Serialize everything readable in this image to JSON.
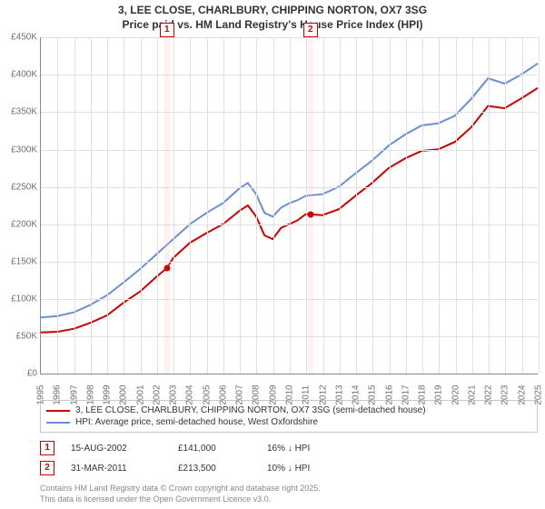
{
  "title_line1": "3, LEE CLOSE, CHARLBURY, CHIPPING NORTON, OX7 3SG",
  "title_line2": "Price paid vs. HM Land Registry's House Price Index (HPI)",
  "chart": {
    "type": "line",
    "background_color": "#ffffff",
    "grid_color": "#e0e0e0",
    "axis_color": "#888888",
    "label_color": "#707070",
    "label_fontsize": 10,
    "ylim": [
      0,
      450000
    ],
    "ytick_step": 50000,
    "yticks": [
      "£0",
      "£50K",
      "£100K",
      "£150K",
      "£200K",
      "£250K",
      "£300K",
      "£350K",
      "£400K",
      "£450K"
    ],
    "xlim": [
      1995,
      2025
    ],
    "xticks": [
      "1995",
      "1996",
      "1997",
      "1998",
      "1999",
      "2000",
      "2001",
      "2002",
      "2003",
      "2004",
      "2005",
      "2006",
      "2007",
      "2008",
      "2009",
      "2010",
      "2011",
      "2012",
      "2013",
      "2014",
      "2015",
      "2016",
      "2017",
      "2018",
      "2019",
      "2020",
      "2021",
      "2022",
      "2023",
      "2024",
      "2025"
    ],
    "series": [
      {
        "name": "price_paid",
        "label": "3, LEE CLOSE, CHARLBURY, CHIPPING NORTON, OX7 3SG (semi-detached house)",
        "color": "#d00000",
        "line_width": 2,
        "points": [
          [
            1995,
            55000
          ],
          [
            1996,
            56000
          ],
          [
            1997,
            60000
          ],
          [
            1998,
            68000
          ],
          [
            1999,
            78000
          ],
          [
            2000,
            95000
          ],
          [
            2001,
            110000
          ],
          [
            2002,
            130000
          ],
          [
            2002.6,
            141000
          ],
          [
            2003,
            155000
          ],
          [
            2004,
            175000
          ],
          [
            2005,
            188000
          ],
          [
            2006,
            200000
          ],
          [
            2007,
            218000
          ],
          [
            2007.5,
            225000
          ],
          [
            2008,
            210000
          ],
          [
            2008.5,
            185000
          ],
          [
            2009,
            180000
          ],
          [
            2009.5,
            195000
          ],
          [
            2010,
            200000
          ],
          [
            2010.5,
            205000
          ],
          [
            2011,
            213500
          ],
          [
            2012,
            212000
          ],
          [
            2013,
            220000
          ],
          [
            2014,
            238000
          ],
          [
            2015,
            255000
          ],
          [
            2016,
            275000
          ],
          [
            2017,
            288000
          ],
          [
            2018,
            298000
          ],
          [
            2019,
            300000
          ],
          [
            2020,
            310000
          ],
          [
            2021,
            330000
          ],
          [
            2022,
            358000
          ],
          [
            2023,
            355000
          ],
          [
            2024,
            368000
          ],
          [
            2025,
            382000
          ]
        ]
      },
      {
        "name": "hpi",
        "label": "HPI: Average price, semi-detached house, West Oxfordshire",
        "color": "#6a8fd8",
        "line_width": 2,
        "points": [
          [
            1995,
            75000
          ],
          [
            1996,
            77000
          ],
          [
            1997,
            82000
          ],
          [
            1998,
            92000
          ],
          [
            1999,
            105000
          ],
          [
            2000,
            122000
          ],
          [
            2001,
            140000
          ],
          [
            2002,
            160000
          ],
          [
            2003,
            180000
          ],
          [
            2004,
            200000
          ],
          [
            2005,
            215000
          ],
          [
            2006,
            228000
          ],
          [
            2007,
            248000
          ],
          [
            2007.5,
            255000
          ],
          [
            2008,
            240000
          ],
          [
            2008.5,
            215000
          ],
          [
            2009,
            210000
          ],
          [
            2009.5,
            222000
          ],
          [
            2010,
            228000
          ],
          [
            2010.5,
            232000
          ],
          [
            2011,
            238000
          ],
          [
            2012,
            240000
          ],
          [
            2013,
            250000
          ],
          [
            2014,
            268000
          ],
          [
            2015,
            285000
          ],
          [
            2016,
            305000
          ],
          [
            2017,
            320000
          ],
          [
            2018,
            332000
          ],
          [
            2019,
            335000
          ],
          [
            2020,
            345000
          ],
          [
            2021,
            368000
          ],
          [
            2022,
            395000
          ],
          [
            2023,
            388000
          ],
          [
            2024,
            400000
          ],
          [
            2025,
            415000
          ]
        ]
      }
    ],
    "markers": [
      {
        "num": "1",
        "x": 2002.6,
        "y": 141000
      },
      {
        "num": "2",
        "x": 2011.25,
        "y": 213500
      }
    ],
    "marker_band_color": "rgba(255,200,200,0.25)",
    "marker_border_color": "#d00000"
  },
  "legend": {
    "items": [
      {
        "color": "#d00000",
        "label": "3, LEE CLOSE, CHARLBURY, CHIPPING NORTON, OX7 3SG (semi-detached house)"
      },
      {
        "color": "#6a8fd8",
        "label": "HPI: Average price, semi-detached house, West Oxfordshire"
      }
    ]
  },
  "events": [
    {
      "num": "1",
      "date": "15-AUG-2002",
      "price": "£141,000",
      "delta": "16% ↓ HPI"
    },
    {
      "num": "2",
      "date": "31-MAR-2011",
      "price": "£213,500",
      "delta": "10% ↓ HPI"
    }
  ],
  "footnote_line1": "Contains HM Land Registry data © Crown copyright and database right 2025.",
  "footnote_line2": "This data is licensed under the Open Government Licence v3.0."
}
